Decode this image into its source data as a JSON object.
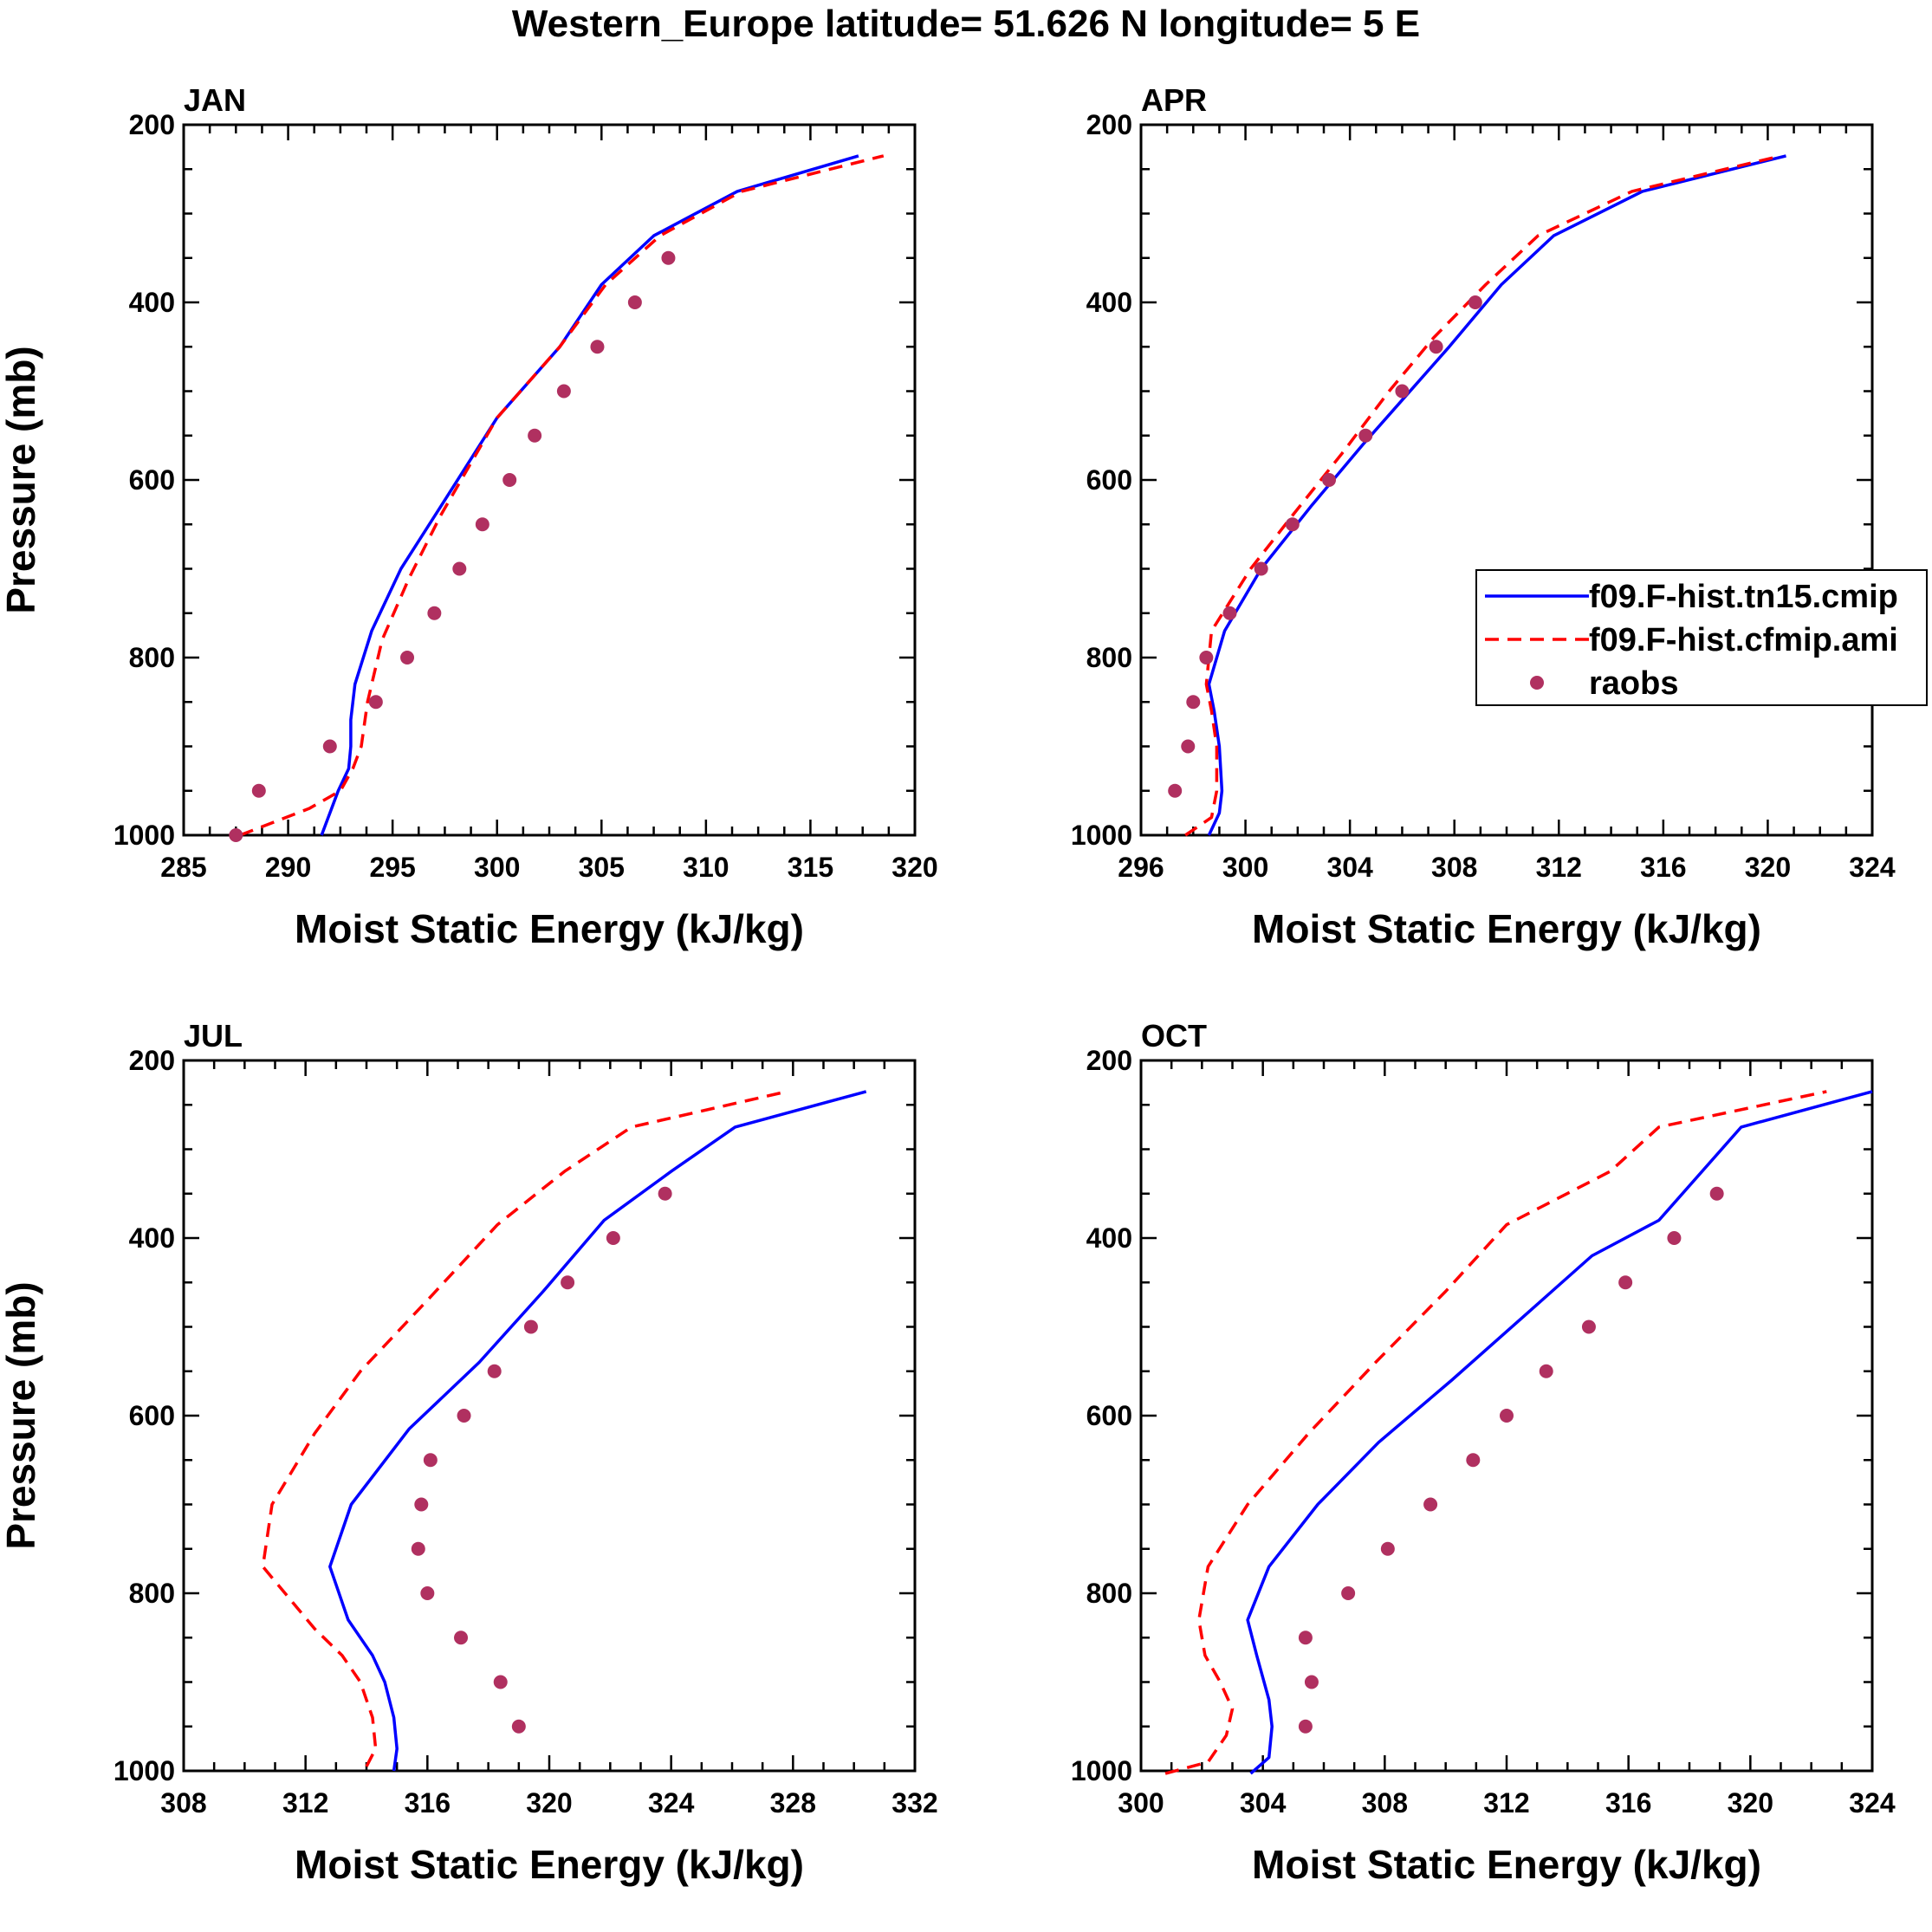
{
  "figure": {
    "title": "Western_Europe  latitude= 51.626 N longitude= 5 E"
  },
  "legend": {
    "entries": [
      {
        "name": "f09.F-hist.tn15.cmip",
        "style": "solid",
        "color": "#0000ff"
      },
      {
        "name": "f09.F-hist.cfmip.ami",
        "style": "dashed",
        "color": "#ff0000"
      },
      {
        "name": "raobs",
        "style": "marker",
        "color": "#b03060"
      }
    ]
  },
  "chart_data": [
    {
      "type": "line",
      "title": "JAN",
      "xlabel": "Moist Static Energy (kJ/kg)",
      "ylabel": "Pressure (mb)",
      "xlim": [
        285,
        320
      ],
      "xticks": [
        285,
        290,
        295,
        300,
        305,
        310,
        315,
        320
      ],
      "ylim": [
        1000,
        200
      ],
      "yticks": [
        200,
        400,
        600,
        800,
        1000
      ],
      "series": [
        {
          "name": "f09.F-hist.tn15.cmip",
          "style": "solid",
          "color": "#0000ff",
          "x": [
            291.6,
            292.4,
            292.9,
            293.0,
            293.0,
            293.2,
            294.0,
            295.4,
            297.3,
            300.0,
            303.0,
            305.0,
            307.5,
            311.5,
            317.3
          ],
          "y": [
            1000,
            950,
            925,
            900,
            870,
            830,
            770,
            700,
            630,
            530,
            450,
            380,
            325,
            275,
            235
          ]
        },
        {
          "name": "f09.F-hist.cfmip.ami",
          "style": "dashed",
          "color": "#ff0000",
          "x": [
            287.7,
            291.0,
            292.5,
            293.1,
            293.5,
            293.8,
            294.5,
            295.8,
            297.3,
            300.0,
            303.0,
            305.2,
            307.8,
            311.7,
            318.5
          ],
          "y": [
            1000,
            970,
            950,
            925,
            900,
            850,
            780,
            710,
            640,
            530,
            450,
            380,
            325,
            275,
            235
          ]
        },
        {
          "name": "raobs",
          "style": "marker",
          "color": "#b03060",
          "x": [
            287.5,
            288.6,
            292.0,
            294.2,
            295.7,
            297.0,
            298.2,
            299.3,
            300.6,
            301.8,
            303.2,
            304.8,
            306.6,
            308.2
          ],
          "y": [
            1000,
            950,
            900,
            850,
            800,
            750,
            700,
            650,
            600,
            550,
            500,
            450,
            400,
            350
          ]
        }
      ]
    },
    {
      "type": "line",
      "title": "APR",
      "xlabel": "Moist Static Energy (kJ/kg)",
      "ylabel": "",
      "xlim": [
        296,
        324
      ],
      "xticks": [
        296,
        300,
        304,
        308,
        312,
        316,
        320,
        324
      ],
      "ylim": [
        1000,
        200
      ],
      "yticks": [
        200,
        400,
        600,
        800,
        1000
      ],
      "series": [
        {
          "name": "f09.F-hist.tn15.cmip",
          "style": "solid",
          "color": "#0000ff",
          "x": [
            298.6,
            299.0,
            299.1,
            299.0,
            298.8,
            298.6,
            299.2,
            300.6,
            302.5,
            304.5,
            306.0,
            307.8,
            309.8,
            311.8,
            315.2,
            320.7
          ],
          "y": [
            1000,
            975,
            950,
            900,
            860,
            830,
            770,
            700,
            630,
            560,
            510,
            450,
            380,
            325,
            275,
            235
          ]
        },
        {
          "name": "f09.F-hist.cfmip.ami",
          "style": "dashed",
          "color": "#ff0000",
          "x": [
            297.7,
            298.7,
            298.9,
            298.9,
            298.7,
            298.5,
            298.7,
            300.2,
            301.8,
            303.7,
            305.5,
            307.2,
            309.2,
            311.2,
            314.8,
            320.5
          ],
          "y": [
            1000,
            980,
            950,
            900,
            860,
            830,
            770,
            700,
            640,
            570,
            500,
            440,
            380,
            325,
            275,
            235
          ]
        },
        {
          "name": "raobs",
          "style": "marker",
          "color": "#b03060",
          "x": [
            297.3,
            297.8,
            298.0,
            298.5,
            299.4,
            300.6,
            301.8,
            303.2,
            304.6,
            306.0,
            307.3,
            308.8
          ],
          "y": [
            950,
            900,
            850,
            800,
            750,
            700,
            650,
            600,
            550,
            500,
            450,
            400
          ]
        }
      ]
    },
    {
      "type": "line",
      "title": "JUL",
      "xlabel": "Moist Static Energy (kJ/kg)",
      "ylabel": "Pressure (mb)",
      "xlim": [
        308,
        332
      ],
      "xticks": [
        308,
        312,
        316,
        320,
        324,
        328,
        332
      ],
      "ylim": [
        1000,
        200
      ],
      "yticks": [
        200,
        400,
        600,
        800,
        1000
      ],
      "series": [
        {
          "name": "f09.F-hist.tn15.cmip",
          "style": "solid",
          "color": "#0000ff",
          "x": [
            314.9,
            315.0,
            314.9,
            314.6,
            314.2,
            313.4,
            312.8,
            313.5,
            315.4,
            317.7,
            319.8,
            321.8,
            324.0,
            326.1,
            330.4
          ],
          "y": [
            1000,
            975,
            940,
            900,
            870,
            830,
            770,
            700,
            615,
            540,
            460,
            380,
            325,
            275,
            235
          ]
        },
        {
          "name": "f09.F-hist.cfmip.ami",
          "style": "dashed",
          "color": "#ff0000",
          "x": [
            314.0,
            314.3,
            314.2,
            313.8,
            313.2,
            312.3,
            310.6,
            310.9,
            312.3,
            313.8,
            316.0,
            318.3,
            320.5,
            322.7,
            327.8
          ],
          "y": [
            995,
            975,
            940,
            900,
            870,
            840,
            770,
            700,
            620,
            550,
            470,
            385,
            325,
            275,
            235
          ]
        },
        {
          "name": "raobs",
          "style": "marker",
          "color": "#b03060",
          "x": [
            319.0,
            318.4,
            317.1,
            316.0,
            315.7,
            315.8,
            316.1,
            317.2,
            318.2,
            319.4,
            320.6,
            322.1,
            323.8
          ],
          "y": [
            950,
            900,
            850,
            800,
            750,
            700,
            650,
            600,
            550,
            500,
            450,
            400,
            350
          ]
        }
      ]
    },
    {
      "type": "line",
      "title": "OCT",
      "xlabel": "Moist Static Energy (kJ/kg)",
      "ylabel": "",
      "xlim": [
        300,
        324
      ],
      "xticks": [
        300,
        304,
        308,
        312,
        316,
        320,
        324
      ],
      "ylim": [
        1000,
        200
      ],
      "yticks": [
        200,
        400,
        600,
        800,
        1000
      ],
      "series": [
        {
          "name": "f09.F-hist.tn15.cmip",
          "style": "solid",
          "color": "#0000ff",
          "x": [
            303.6,
            304.2,
            304.3,
            304.2,
            303.8,
            303.5,
            304.2,
            305.8,
            307.8,
            310.2,
            312.5,
            314.8,
            317.0,
            319.7,
            324.0
          ],
          "y": [
            1003,
            985,
            950,
            920,
            870,
            830,
            770,
            700,
            630,
            560,
            490,
            420,
            380,
            275,
            235
          ]
        },
        {
          "name": "f09.F-hist.cfmip.ami",
          "style": "dashed",
          "color": "#ff0000",
          "x": [
            300.8,
            302.2,
            302.8,
            303.0,
            302.6,
            302.1,
            301.9,
            302.2,
            303.5,
            305.5,
            307.7,
            310.0,
            312.0,
            315.4,
            317.0,
            322.5
          ],
          "y": [
            1003,
            990,
            960,
            930,
            900,
            870,
            830,
            770,
            700,
            620,
            540,
            460,
            385,
            325,
            275,
            235
          ]
        },
        {
          "name": "raobs",
          "style": "marker",
          "color": "#b03060",
          "x": [
            305.4,
            305.6,
            305.4,
            306.8,
            308.1,
            309.5,
            310.9,
            312.0,
            313.3,
            314.7,
            315.9,
            317.5,
            318.9
          ],
          "y": [
            950,
            900,
            850,
            800,
            750,
            700,
            650,
            600,
            550,
            500,
            450,
            400,
            350
          ]
        }
      ]
    }
  ]
}
